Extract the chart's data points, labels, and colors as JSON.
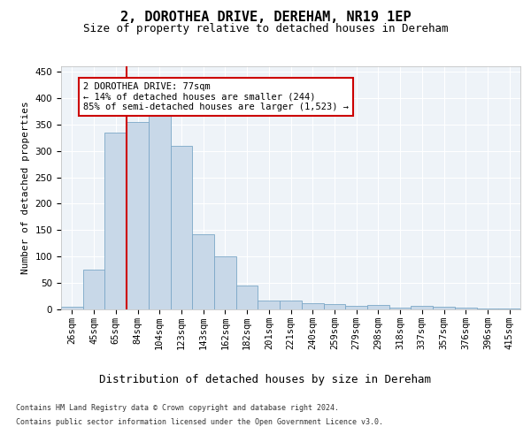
{
  "title": "2, DOROTHEA DRIVE, DEREHAM, NR19 1EP",
  "subtitle": "Size of property relative to detached houses in Dereham",
  "xlabel": "Distribution of detached houses by size in Dereham",
  "ylabel": "Number of detached properties",
  "bar_color": "#c8d8e8",
  "bar_edge_color": "#7ba7c7",
  "background_color": "#eef3f8",
  "grid_color": "#ffffff",
  "categories": [
    "26sqm",
    "45sqm",
    "65sqm",
    "84sqm",
    "104sqm",
    "123sqm",
    "143sqm",
    "162sqm",
    "182sqm",
    "201sqm",
    "221sqm",
    "240sqm",
    "259sqm",
    "279sqm",
    "298sqm",
    "318sqm",
    "337sqm",
    "357sqm",
    "376sqm",
    "396sqm",
    "415sqm"
  ],
  "values": [
    5,
    75,
    335,
    355,
    370,
    310,
    143,
    100,
    46,
    17,
    17,
    11,
    10,
    7,
    8,
    3,
    6,
    5,
    3,
    1,
    2
  ],
  "vline_idx": 2.5,
  "vline_color": "#cc0000",
  "annotation_text": "2 DOROTHEA DRIVE: 77sqm\n← 14% of detached houses are smaller (244)\n85% of semi-detached houses are larger (1,523) →",
  "annotation_box_color": "#ffffff",
  "annotation_box_edge": "#cc0000",
  "ylim": [
    0,
    460
  ],
  "yticks": [
    0,
    50,
    100,
    150,
    200,
    250,
    300,
    350,
    400,
    450
  ],
  "footer_line1": "Contains HM Land Registry data © Crown copyright and database right 2024.",
  "footer_line2": "Contains public sector information licensed under the Open Government Licence v3.0.",
  "title_fontsize": 11,
  "subtitle_fontsize": 9,
  "xlabel_fontsize": 9,
  "ylabel_fontsize": 8,
  "tick_fontsize": 7.5,
  "annotation_fontsize": 7.5,
  "footer_fontsize": 6.0
}
